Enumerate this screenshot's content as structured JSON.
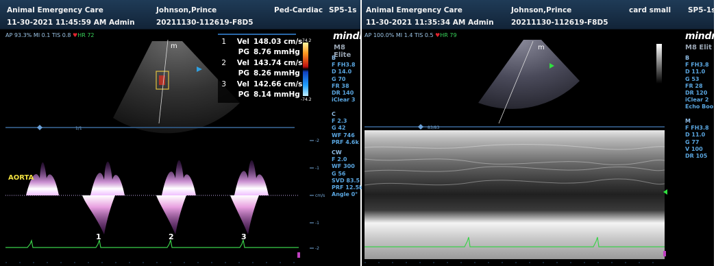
{
  "left": {
    "header": {
      "clinic": "Animal Emergency Care",
      "patient": "Johnson,Prince",
      "preset": "Ped-Cardiac",
      "probe": "SP5-1s",
      "datetime": "11-30-2021 11:45:59 AM Admin",
      "exam_id": "20211130-112619-F8D5"
    },
    "status": {
      "ap": "AP 93.3%",
      "mi": "MI 0.1",
      "tis": "TIS 0.8",
      "hr": "HR 72"
    },
    "brand": "mindra",
    "model": "M8 Elite",
    "params_b": [
      "B",
      "F FH3.8",
      "D 14.0",
      "G 70",
      "FR 38",
      "DR 140",
      "iClear 3"
    ],
    "params_c": [
      "C",
      "F 2.3",
      "G 42",
      "WF 746",
      "PRF 4.6k"
    ],
    "params_cw": [
      "CW",
      "F 2.0",
      "WF 300",
      "G 56",
      "SVD 83.5",
      "PRF 12.5k",
      "Angle 0°"
    ],
    "measurements": [
      {
        "n": "1",
        "label": "Vel",
        "value": "148.03 cm/s"
      },
      {
        "n": "",
        "label": "PG",
        "value": "8.76 mmHg"
      },
      {
        "n": "2",
        "label": "Vel",
        "value": "143.74 cm/s"
      },
      {
        "n": "",
        "label": "PG",
        "value": "8.26 mmHg"
      },
      {
        "n": "3",
        "label": "Vel",
        "value": "142.66 cm/s"
      },
      {
        "n": "",
        "label": "PG",
        "value": "8.14 mmHg"
      }
    ],
    "colorbar_top": "74.2",
    "colorbar_bottom": "-74.2",
    "vessel_label": "AORTA",
    "cycle_labels": [
      "1",
      "2",
      "3"
    ],
    "scale_labels": [
      "-2",
      "-1",
      "cm/s",
      "-1",
      "-2"
    ],
    "timeline_label": "1/1",
    "colors": {
      "header": "#1a3450",
      "param_text": "#5aa6e0",
      "ecg": "#3bd04a",
      "doppler": "#e8a0e0",
      "aorta_label": "#f0e040"
    }
  },
  "right": {
    "header": {
      "clinic": "Animal Emergency Care",
      "patient": "Johnson,Prince",
      "preset": "card small",
      "probe": "SP5-1s",
      "datetime": "11-30-2021 11:35:34 AM Admin",
      "exam_id": "20211130-112619-F8D5"
    },
    "status": {
      "ap": "AP 100.0%",
      "mi": "MI 1.4",
      "tis": "TIS 0.5",
      "hr": "HR 79"
    },
    "brand": "mindr",
    "model": "M8 Elit",
    "params_b": [
      "B",
      "F FH3.8",
      "D 11.0",
      "G 53",
      "FR 28",
      "DR 120",
      "iClear 2",
      "Echo Boo"
    ],
    "params_m": [
      "M",
      "F FH3.8",
      "D 11.0",
      "G 77",
      "V 100",
      "DR 105"
    ],
    "timeline_label": "83/83"
  }
}
